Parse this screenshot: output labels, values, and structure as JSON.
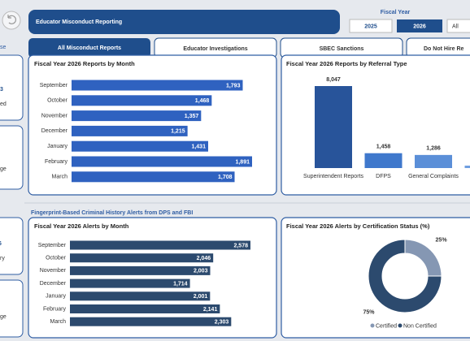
{
  "header": {
    "title": "Educator Misconduct Reporting"
  },
  "fiscal_year": {
    "label": "Fiscal Year",
    "options": [
      "2025",
      "2026",
      "All"
    ]
  },
  "tabs": [
    "All Misconduct Reports",
    "Educator Investigations",
    "SBEC Sanctions",
    "Do Not Hire Re"
  ],
  "side_panel": {
    "top_label": "se",
    "cards": [
      {
        "value": "3",
        "label": "ed"
      },
      {
        "label": "ge"
      },
      {
        "value": "6",
        "label": "ry"
      },
      {
        "label": "ge"
      }
    ]
  },
  "section_title": "Fingerprint-Based Criminal History Alerts from DPS and FBI",
  "chart_data": [
    {
      "type": "bar",
      "orientation": "horizontal",
      "title": "Fiscal Year 2026 Reports by Month",
      "categories": [
        "September",
        "October",
        "November",
        "December",
        "January",
        "February",
        "March"
      ],
      "values": [
        1793,
        1468,
        1357,
        1215,
        1431,
        1891,
        1708
      ],
      "value_labels": [
        "1,793",
        "1,468",
        "1,357",
        "1,215",
        "1,431",
        "1,891",
        "1,708"
      ],
      "color": "#2f62c0"
    },
    {
      "type": "bar",
      "orientation": "vertical",
      "title": "Fiscal Year 2026 Reports by Referral Type",
      "categories": [
        "Superintendent Reports",
        "DFPS",
        "General Complaints",
        null
      ],
      "values": [
        8047,
        1458,
        1286,
        240
      ],
      "value_labels": [
        "8,047",
        "1,458",
        "1,286",
        null
      ],
      "colors": [
        "#28549a",
        "#3f78cc",
        "#5b8fd8",
        "#6f9fe0"
      ]
    },
    {
      "type": "bar",
      "orientation": "horizontal",
      "title": "Fiscal Year 2026 Alerts by Month",
      "categories": [
        "September",
        "October",
        "November",
        "December",
        "January",
        "February",
        "March"
      ],
      "values": [
        2578,
        2046,
        2003,
        1714,
        2001,
        2141,
        2303
      ],
      "value_labels": [
        "2,578",
        "2,046",
        "2,003",
        "1,714",
        "2,001",
        "2,141",
        "2,303"
      ],
      "color": "#2c4a6e"
    },
    {
      "type": "pie",
      "donut": true,
      "title": "Fiscal Year 2026 Alerts by Certification Status (%)",
      "series": [
        {
          "name": "Certified",
          "color": "#8597b3",
          "values": [
            25
          ],
          "value_labels": [
            "25%"
          ]
        },
        {
          "name": "Non Certified",
          "color": "#2c4a6e",
          "values": [
            75
          ],
          "value_labels": [
            "75%"
          ]
        }
      ]
    }
  ]
}
